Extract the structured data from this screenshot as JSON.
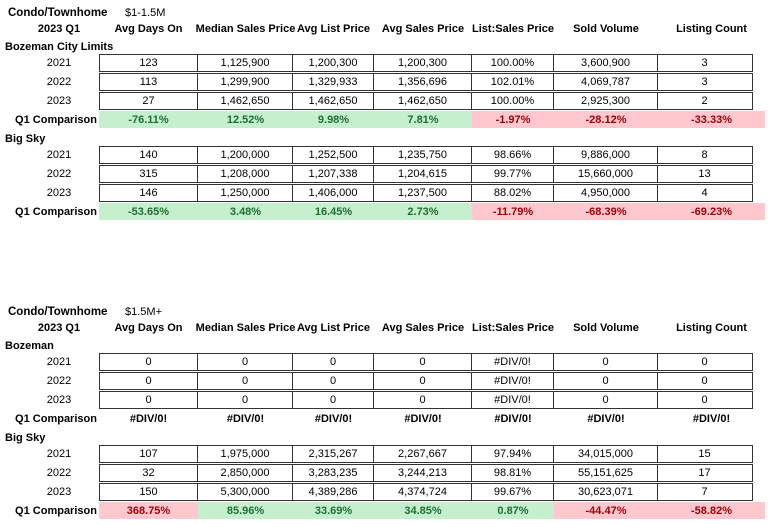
{
  "colors": {
    "good_bg": "#c6efce",
    "good_text": "#1e6e34",
    "bad_bg": "#ffc7ce",
    "bad_text": "#9c0006"
  },
  "columns": [
    "Avg Days On",
    "Median Sales Price",
    "Avg List Price",
    "Avg Sales Price",
    "List:Sales Price",
    "Sold Volume",
    "Listing Count"
  ],
  "tables": [
    {
      "property_type": "Condo/Townhome",
      "price_range": "$1-1.5M",
      "period": "2023 Q1",
      "sections": [
        {
          "name": "Bozeman City Limits",
          "years": [
            {
              "label": "2021",
              "values": [
                "123",
                "1,125,900",
                "1,200,300",
                "1,200,300",
                "100.00%",
                "3,600,900",
                "3"
              ]
            },
            {
              "label": "2022",
              "values": [
                "113",
                "1,299,900",
                "1,329,933",
                "1,356,696",
                "102.01%",
                "4,069,787",
                "3"
              ]
            },
            {
              "label": "2023",
              "values": [
                "27",
                "1,462,650",
                "1,462,650",
                "1,462,650",
                "100.00%",
                "2,925,300",
                "2"
              ]
            }
          ],
          "comparison": {
            "label": "Q1 Comparison",
            "values": [
              "-76.11%",
              "12.52%",
              "9.98%",
              "7.81%",
              "-1.97%",
              "-28.12%",
              "-33.33%"
            ],
            "styles": [
              "good",
              "good",
              "good",
              "good",
              "bad",
              "bad",
              "bad"
            ]
          }
        },
        {
          "name": "Big Sky",
          "years": [
            {
              "label": "2021",
              "values": [
                "140",
                "1,200,000",
                "1,252,500",
                "1,235,750",
                "98.66%",
                "9,886,000",
                "8"
              ]
            },
            {
              "label": "2022",
              "values": [
                "315",
                "1,208,000",
                "1,207,338",
                "1,204,615",
                "99.77%",
                "15,660,000",
                "13"
              ]
            },
            {
              "label": "2023",
              "values": [
                "146",
                "1,250,000",
                "1,406,000",
                "1,237,500",
                "88.02%",
                "4,950,000",
                "4"
              ]
            }
          ],
          "comparison": {
            "label": "Q1 Comparison",
            "values": [
              "-53.65%",
              "3.48%",
              "16.45%",
              "2.73%",
              "-11.79%",
              "-68.39%",
              "-69.23%"
            ],
            "styles": [
              "good",
              "good",
              "good",
              "good",
              "bad",
              "bad",
              "bad"
            ]
          }
        }
      ]
    },
    {
      "property_type": "Condo/Townhome",
      "price_range": "$1.5M+",
      "period": "2023 Q1",
      "sections": [
        {
          "name": "Bozeman",
          "years": [
            {
              "label": "2021",
              "values": [
                "0",
                "0",
                "0",
                "0",
                "#DIV/0!",
                "0",
                "0"
              ]
            },
            {
              "label": "2022",
              "values": [
                "0",
                "0",
                "0",
                "0",
                "#DIV/0!",
                "0",
                "0"
              ]
            },
            {
              "label": "2023",
              "values": [
                "0",
                "0",
                "0",
                "0",
                "#DIV/0!",
                "0",
                "0"
              ]
            }
          ],
          "comparison": {
            "label": "Q1 Comparison",
            "values": [
              "#DIV/0!",
              "#DIV/0!",
              "#DIV/0!",
              "#DIV/0!",
              "#DIV/0!",
              "#DIV/0!",
              "#DIV/0!"
            ],
            "styles": [
              "none",
              "none",
              "none",
              "none",
              "none",
              "none",
              "none"
            ]
          }
        },
        {
          "name": "Big Sky",
          "years": [
            {
              "label": "2021",
              "values": [
                "107",
                "1,975,000",
                "2,315,267",
                "2,267,667",
                "97.94%",
                "34,015,000",
                "15"
              ]
            },
            {
              "label": "2022",
              "values": [
                "32",
                "2,850,000",
                "3,283,235",
                "3,244,213",
                "98.81%",
                "55,151,625",
                "17"
              ]
            },
            {
              "label": "2023",
              "values": [
                "150",
                "5,300,000",
                "4,389,286",
                "4,374,724",
                "99.67%",
                "30,623,071",
                "7"
              ]
            }
          ],
          "comparison": {
            "label": "Q1 Comparison",
            "values": [
              "368.75%",
              "85.96%",
              "33.69%",
              "34.85%",
              "0.87%",
              "-44.47%",
              "-58.82%"
            ],
            "styles": [
              "bad",
              "good",
              "good",
              "good",
              "good",
              "bad",
              "bad"
            ]
          }
        }
      ]
    }
  ]
}
